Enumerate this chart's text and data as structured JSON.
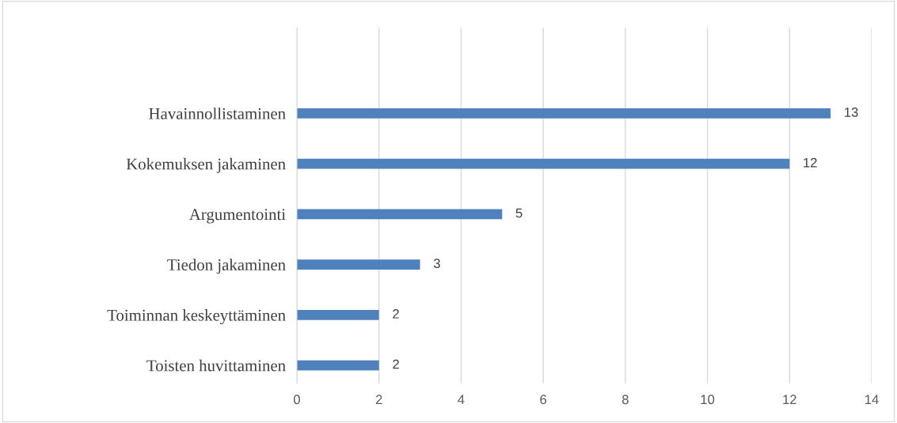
{
  "chart_data": {
    "type": "bar",
    "orientation": "horizontal",
    "categories": [
      "Havainnollistaminen",
      "Kokemuksen jakaminen",
      "Argumentointi",
      "Tiedon jakaminen",
      "Toiminnan keskeyttäminen",
      "Toisten huvittaminen"
    ],
    "values": [
      13,
      12,
      5,
      3,
      2,
      2
    ],
    "color": "#4f81bd",
    "xlim": [
      0,
      14
    ],
    "xticks": [
      0,
      2,
      4,
      6,
      8,
      10,
      12,
      14
    ],
    "grid": "x",
    "data_labels": true,
    "legend": false
  }
}
